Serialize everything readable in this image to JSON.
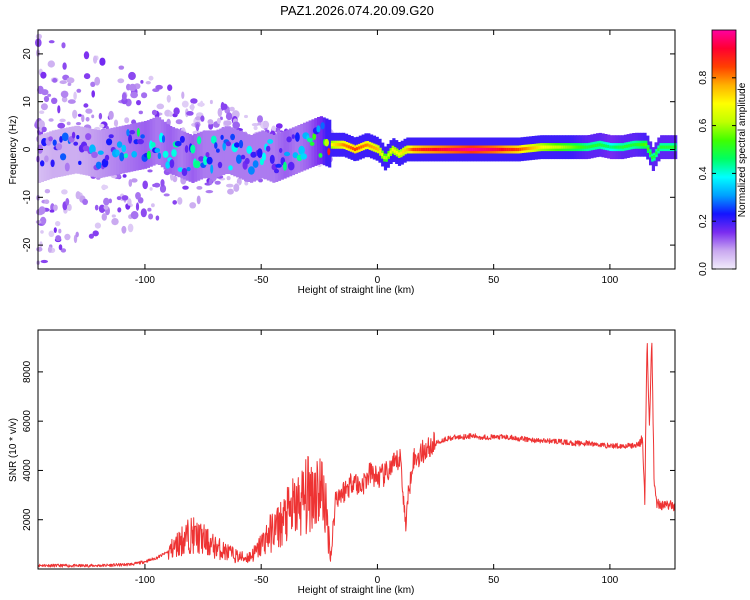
{
  "figure_title": "PAZ1.2026.074.20.09.G20",
  "chart_data": [
    {
      "type": "heatmap",
      "title": "PAZ1.2026.074.20.09.G20",
      "xlabel": "Height of straight line (km)",
      "ylabel": "Frequency (Hz)",
      "xlim": [
        -146,
        128
      ],
      "ylim": [
        -25,
        25
      ],
      "xticks": [
        -100,
        -50,
        0,
        50,
        100
      ],
      "xtick_labels": [
        "-100",
        "-50",
        "0",
        "50",
        "100"
      ],
      "yticks": [
        -20,
        -10,
        0,
        10,
        20
      ],
      "ytick_labels": [
        "-20",
        "-10",
        "0",
        "10",
        "20"
      ],
      "colorbar": {
        "label": "Normalized spectral amplitude",
        "range": [
          0,
          1
        ],
        "ticks": [
          0,
          0.2,
          0.4,
          0.6,
          0.8
        ],
        "tick_labels": [
          "0.0",
          "0.2",
          "0.4",
          "0.6",
          "0.8"
        ],
        "colors": [
          "#f2ecfb",
          "#c9a8f0",
          "#7a2cf0",
          "#1414ff",
          "#00a0ff",
          "#00ffff",
          "#00ff60",
          "#40ff00",
          "#c0ff00",
          "#ffff00",
          "#ffb000",
          "#ff4000",
          "#ff0030",
          "#ff00a0"
        ]
      },
      "ridge": {
        "x": [
          -146,
          -140,
          -130,
          -120,
          -110,
          -100,
          -95,
          -90,
          -85,
          -80,
          -75,
          -70,
          -65,
          -60,
          -55,
          -50,
          -45,
          -40,
          -35,
          -30,
          -25,
          -20,
          -15,
          -10,
          -5,
          0,
          3,
          6,
          9,
          12,
          15,
          20,
          30,
          40,
          50,
          60,
          70,
          80,
          90,
          95,
          100,
          105,
          110,
          115,
          118,
          121,
          125,
          128
        ],
        "y": [
          -2,
          -1,
          0,
          -1,
          0,
          1,
          2,
          0,
          -1,
          -2,
          -1,
          -1,
          0,
          -1,
          -2,
          -1,
          -2,
          -1,
          0,
          1,
          2,
          1,
          1,
          0,
          1,
          0,
          -2,
          0,
          -1,
          0,
          0,
          0,
          0,
          0,
          0,
          0,
          0.5,
          0.5,
          0.5,
          1,
          0.5,
          0.5,
          1,
          1,
          -2,
          0.5,
          0.5,
          0.5
        ],
        "amplitude": [
          0.15,
          0.2,
          0.2,
          0.25,
          0.3,
          0.35,
          0.3,
          0.35,
          0.3,
          0.35,
          0.3,
          0.3,
          0.3,
          0.3,
          0.3,
          0.3,
          0.3,
          0.35,
          0.3,
          0.35,
          0.45,
          0.7,
          0.8,
          0.85,
          0.8,
          0.75,
          0.6,
          0.7,
          0.7,
          0.75,
          0.85,
          0.9,
          0.95,
          1.0,
          0.95,
          0.85,
          0.7,
          0.6,
          0.5,
          0.5,
          0.45,
          0.5,
          0.5,
          0.55,
          0.5,
          0.5,
          0.5,
          0.5
        ]
      }
    },
    {
      "type": "line",
      "xlabel": "Height of straight line (km)",
      "ylabel": "SNR (10 * v/v)",
      "xlim": [
        -146,
        128
      ],
      "ylim": [
        0,
        9700
      ],
      "xticks": [
        -100,
        -50,
        0,
        50,
        100
      ],
      "xtick_labels": [
        "-100",
        "-50",
        "0",
        "50",
        "100"
      ],
      "yticks": [
        2000,
        4000,
        6000,
        8000
      ],
      "ytick_labels": [
        "2000",
        "4000",
        "6000",
        "8000"
      ],
      "series": [
        {
          "name": "SNR",
          "color": "#ee3333",
          "x": [
            -146,
            -140,
            -130,
            -120,
            -110,
            -105,
            -100,
            -95,
            -90,
            -87,
            -85,
            -82,
            -80,
            -78,
            -75,
            -72,
            -70,
            -65,
            -60,
            -57,
            -55,
            -52,
            -50,
            -48,
            -45,
            -42,
            -40,
            -37,
            -35,
            -32,
            -30,
            -28,
            -25,
            -23,
            -20,
            -18,
            -15,
            -12,
            -10,
            -8,
            -5,
            -3,
            0,
            3,
            5,
            8,
            10,
            12,
            15,
            18,
            20,
            25,
            30,
            35,
            40,
            45,
            50,
            55,
            60,
            65,
            70,
            75,
            80,
            85,
            90,
            95,
            100,
            105,
            110,
            113,
            114,
            115,
            116,
            117,
            118,
            119,
            120,
            122,
            125,
            128
          ],
          "y": [
            150,
            140,
            130,
            140,
            170,
            200,
            300,
            450,
            700,
            900,
            1100,
            1300,
            1400,
            1300,
            1200,
            1000,
            900,
            700,
            500,
            450,
            500,
            700,
            1000,
            1250,
            1550,
            1800,
            2000,
            2350,
            2500,
            2800,
            3000,
            3200,
            3300,
            3000,
            500,
            2900,
            3100,
            3400,
            3700,
            3300,
            3600,
            3900,
            3700,
            3800,
            4000,
            4300,
            4500,
            1800,
            4400,
            4600,
            4800,
            5100,
            5300,
            5350,
            5400,
            5350,
            5350,
            5350,
            5300,
            5250,
            5200,
            5200,
            5150,
            5100,
            5100,
            5050,
            5000,
            5000,
            5000,
            5100,
            5300,
            2800,
            9500,
            5600,
            9600,
            3600,
            2700,
            2600,
            2600,
            2550
          ]
        }
      ]
    }
  ]
}
